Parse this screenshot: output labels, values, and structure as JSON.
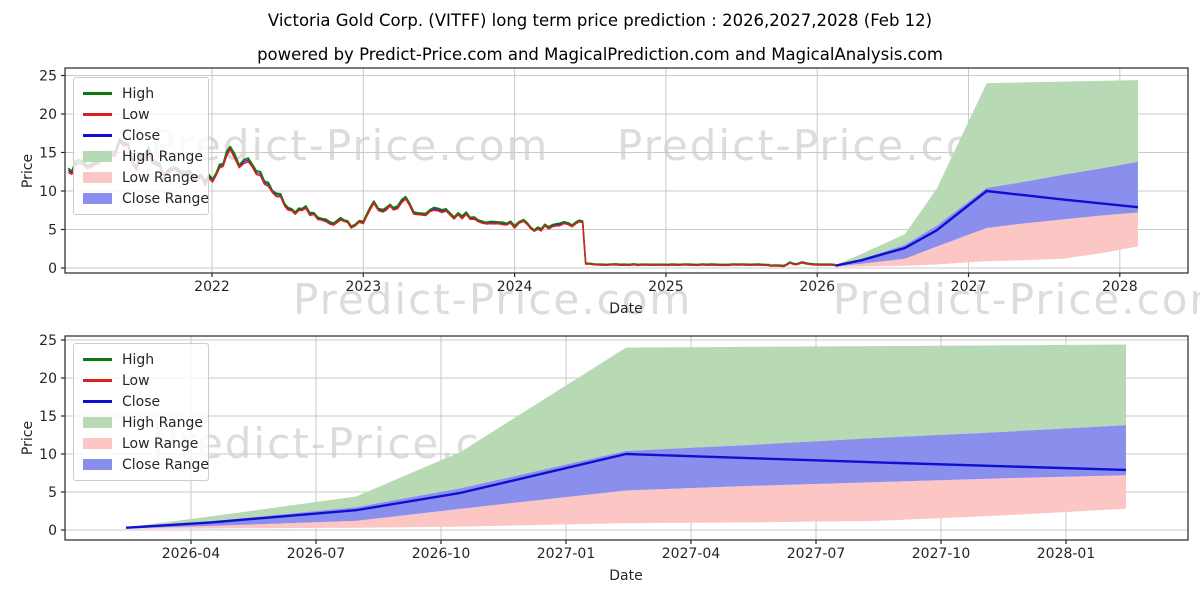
{
  "title": "Victoria Gold Corp. (VITFF) long term price prediction : 2026,2027,2028 (Feb 12)",
  "subtitle": "powered by Predict-Price.com and MagicalPrediction.com and MagicalAnalysis.com",
  "watermark": {
    "text": "Predict-Price.com"
  },
  "colors": {
    "high": "#0e7a0e",
    "low": "#d82020",
    "close": "#0f0fcf",
    "close_history": "#2323c8",
    "high_range": "#b7d9b4",
    "low_range": "#fbc6c4",
    "close_range": "#8a8fee",
    "grid": "#cacaca",
    "frame": "#262626",
    "tick_text": "#262626"
  },
  "legend": {
    "position": "upper left",
    "items": [
      {
        "label": "High",
        "type": "line",
        "color": "#0e7a0e"
      },
      {
        "label": "Low",
        "type": "line",
        "color": "#d82020"
      },
      {
        "label": "Close",
        "type": "line",
        "color": "#0f0fcf"
      },
      {
        "label": "High Range",
        "type": "fill",
        "color": "#b7d9b4"
      },
      {
        "label": "Low Range",
        "type": "fill",
        "color": "#fbc6c4"
      },
      {
        "label": "Close Range",
        "type": "fill",
        "color": "#8a8fee"
      }
    ]
  },
  "chart_data": [
    {
      "type": "line",
      "title": "",
      "xlabel": "Date",
      "ylabel": "Price",
      "grid": true,
      "legend_position": "upper left",
      "xlim": [
        2021.03,
        2028.45
      ],
      "ylim": [
        -0.65,
        26.0
      ],
      "x_ticks": [
        {
          "v": 2022,
          "label": "2022"
        },
        {
          "v": 2023,
          "label": "2023"
        },
        {
          "v": 2024,
          "label": "2024"
        },
        {
          "v": 2025,
          "label": "2025"
        },
        {
          "v": 2026,
          "label": "2026"
        },
        {
          "v": 2027,
          "label": "2027"
        },
        {
          "v": 2028,
          "label": "2028"
        }
      ],
      "y_ticks": [
        {
          "v": 0,
          "label": "0"
        },
        {
          "v": 5,
          "label": "5"
        },
        {
          "v": 10,
          "label": "10"
        },
        {
          "v": 15,
          "label": "15"
        },
        {
          "v": 20,
          "label": "20"
        },
        {
          "v": 25,
          "label": "25"
        }
      ],
      "history": {
        "note": "monthly [yearFloat, high, low] of VITFF historical prices",
        "points": [
          [
            2021.05,
            12.6,
            12.19
          ],
          [
            2021.12,
            13.9,
            13.45
          ],
          [
            2021.2,
            12.9,
            12.48
          ],
          [
            2021.3,
            14.3,
            13.84
          ],
          [
            2021.42,
            16.8,
            16.28
          ],
          [
            2021.5,
            13.6,
            13.16
          ],
          [
            2021.58,
            15.4,
            14.92
          ],
          [
            2021.68,
            12.4,
            11.99
          ],
          [
            2021.78,
            13.4,
            12.97
          ],
          [
            2021.88,
            12.2,
            11.8
          ],
          [
            2021.98,
            11.6,
            11.21
          ],
          [
            2022.05,
            13.0,
            12.58
          ],
          [
            2022.12,
            16.1,
            15.6
          ],
          [
            2022.18,
            13.4,
            12.97
          ],
          [
            2022.24,
            14.1,
            13.65
          ],
          [
            2022.32,
            12.4,
            11.99
          ],
          [
            2022.4,
            10.5,
            10.14
          ],
          [
            2022.48,
            8.6,
            8.29
          ],
          [
            2022.55,
            7.3,
            7.02
          ],
          [
            2022.62,
            7.9,
            7.6
          ],
          [
            2022.7,
            6.5,
            6.24
          ],
          [
            2022.78,
            5.9,
            5.65
          ],
          [
            2022.85,
            6.3,
            6.04
          ],
          [
            2022.92,
            5.7,
            5.46
          ],
          [
            2023.0,
            6.2,
            5.95
          ],
          [
            2023.07,
            8.4,
            8.09
          ],
          [
            2023.13,
            7.3,
            7.02
          ],
          [
            2023.2,
            8.2,
            7.9
          ],
          [
            2023.28,
            8.9,
            8.58
          ],
          [
            2023.36,
            7.0,
            6.73
          ],
          [
            2023.44,
            7.4,
            7.12
          ],
          [
            2023.52,
            7.8,
            7.5
          ],
          [
            2023.6,
            6.8,
            6.53
          ],
          [
            2023.68,
            7.1,
            6.82
          ],
          [
            2023.76,
            6.3,
            6.04
          ],
          [
            2023.84,
            5.9,
            5.65
          ],
          [
            2023.92,
            6.2,
            5.95
          ],
          [
            2024.0,
            5.7,
            5.46
          ],
          [
            2024.06,
            6.3,
            6.04
          ],
          [
            2024.13,
            5.0,
            4.78
          ],
          [
            2024.2,
            5.5,
            5.26
          ],
          [
            2024.3,
            5.9,
            5.65
          ],
          [
            2024.38,
            5.6,
            5.36
          ],
          [
            2024.45,
            6.1,
            5.85
          ],
          [
            2024.47,
            0.6,
            0.49
          ],
          [
            2024.55,
            0.52,
            0.41
          ],
          [
            2024.7,
            0.5,
            0.39
          ],
          [
            2024.9,
            0.5,
            0.39
          ],
          [
            2025.1,
            0.5,
            0.39
          ],
          [
            2025.3,
            0.5,
            0.39
          ],
          [
            2025.5,
            0.5,
            0.39
          ],
          [
            2025.67,
            0.48,
            0.37
          ],
          [
            2025.69,
            0.36,
            0.25
          ],
          [
            2025.78,
            0.36,
            0.25
          ],
          [
            2025.82,
            0.75,
            0.63
          ],
          [
            2025.86,
            0.5,
            0.39
          ],
          [
            2025.9,
            0.8,
            0.68
          ],
          [
            2025.95,
            0.55,
            0.44
          ],
          [
            2026.0,
            0.5,
            0.39
          ],
          [
            2026.06,
            0.48,
            0.37
          ],
          [
            2026.12,
            0.45,
            0.34
          ]
        ]
      },
      "prediction": {
        "note": "forecast 2026-02-12 to 2028-02-12",
        "x": [
          2026.12,
          2026.29,
          2026.58,
          2026.79,
          2027.12,
          2027.37,
          2027.62,
          2027.87,
          2028.12
        ],
        "close": [
          0.3,
          1.0,
          2.6,
          4.9,
          10.0,
          9.45,
          8.9,
          8.4,
          7.9
        ],
        "close_upper": [
          0.35,
          1.15,
          3.0,
          5.5,
          10.4,
          11.2,
          12.1,
          12.9,
          13.8
        ],
        "close_lower": [
          0.2,
          0.55,
          1.2,
          2.8,
          5.2,
          5.8,
          6.3,
          6.8,
          7.2
        ],
        "high_upper": [
          0.35,
          1.8,
          4.4,
          10.3,
          24.0,
          24.1,
          24.2,
          24.3,
          24.4
        ],
        "low_lower": [
          0.15,
          0.2,
          0.3,
          0.45,
          0.9,
          1.0,
          1.2,
          1.9,
          2.8
        ]
      }
    },
    {
      "type": "line",
      "title": "",
      "xlabel": "Date",
      "ylabel": "Price",
      "grid": true,
      "legend_position": "upper left",
      "xlim": [
        2026.0,
        2028.25
      ],
      "ylim": [
        -1.3,
        25.6
      ],
      "x_ticks": [
        {
          "v": 2026.25,
          "label": "2026-04"
        },
        {
          "v": 2026.5,
          "label": "2026-07"
        },
        {
          "v": 2026.75,
          "label": "2026-10"
        },
        {
          "v": 2027.0,
          "label": "2027-01"
        },
        {
          "v": 2027.25,
          "label": "2027-04"
        },
        {
          "v": 2027.5,
          "label": "2027-07"
        },
        {
          "v": 2027.75,
          "label": "2027-10"
        },
        {
          "v": 2028.0,
          "label": "2028-01"
        }
      ],
      "y_ticks": [
        {
          "v": 0,
          "label": "0"
        },
        {
          "v": 5,
          "label": "5"
        },
        {
          "v": 10,
          "label": "10"
        },
        {
          "v": 15,
          "label": "15"
        },
        {
          "v": 20,
          "label": "20"
        },
        {
          "v": 25,
          "label": "25"
        }
      ],
      "prediction": {
        "note": "forecast 2026-02-12 to 2028-02-12",
        "x": [
          2026.12,
          2026.29,
          2026.58,
          2026.79,
          2027.12,
          2027.37,
          2027.62,
          2027.87,
          2028.12
        ],
        "close": [
          0.3,
          1.0,
          2.6,
          4.9,
          10.0,
          9.45,
          8.9,
          8.4,
          7.9
        ],
        "close_upper": [
          0.35,
          1.15,
          3.0,
          5.5,
          10.4,
          11.2,
          12.1,
          12.9,
          13.8
        ],
        "close_lower": [
          0.2,
          0.55,
          1.2,
          2.8,
          5.2,
          5.8,
          6.3,
          6.8,
          7.2
        ],
        "high_upper": [
          0.35,
          1.8,
          4.4,
          10.3,
          24.0,
          24.1,
          24.2,
          24.3,
          24.4
        ],
        "low_lower": [
          0.15,
          0.2,
          0.3,
          0.45,
          0.9,
          1.0,
          1.2,
          1.9,
          2.8
        ]
      }
    }
  ]
}
